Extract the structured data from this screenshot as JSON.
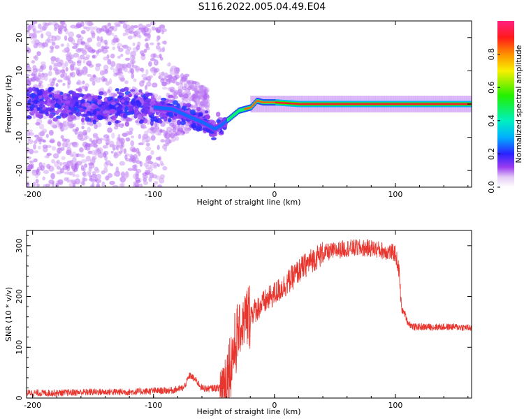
{
  "title": "S116.2022.005.04.49.E04",
  "chart_data": [
    {
      "type": "heatmap",
      "xlabel": "Height of straight line (km)",
      "ylabel": "Frequency (Hz)",
      "xlim": [
        -205,
        163
      ],
      "ylim": [
        -25,
        25
      ],
      "xticks": [
        -200,
        -100,
        0,
        100
      ],
      "yticks": [
        -20,
        -10,
        0,
        10,
        20
      ],
      "colorbar": {
        "label": "Normalized spectral amplitude",
        "range": [
          0,
          1
        ],
        "ticks": [
          "0.0",
          "0.2",
          "0.4",
          "0.6",
          "0.8"
        ]
      },
      "ridge_frequency_track": [
        {
          "x": -205,
          "y": 0.5
        },
        {
          "x": -180,
          "y": 0.0
        },
        {
          "x": -150,
          "y": -1.0
        },
        {
          "x": -120,
          "y": -0.5
        },
        {
          "x": -100,
          "y": -1.0
        },
        {
          "x": -85,
          "y": -1.5
        },
        {
          "x": -70,
          "y": -4.0
        },
        {
          "x": -60,
          "y": -5.5
        },
        {
          "x": -50,
          "y": -7.5
        },
        {
          "x": -45,
          "y": -6.5
        },
        {
          "x": -40,
          "y": -5.0
        },
        {
          "x": -35,
          "y": -3.5
        },
        {
          "x": -30,
          "y": -2.0
        },
        {
          "x": -25,
          "y": -1.5
        },
        {
          "x": -20,
          "y": -1.0
        },
        {
          "x": -15,
          "y": 1.0
        },
        {
          "x": -10,
          "y": 0.5
        },
        {
          "x": 0,
          "y": 0.5
        },
        {
          "x": 20,
          "y": 0.0
        },
        {
          "x": 60,
          "y": 0.0
        },
        {
          "x": 100,
          "y": 0.0
        },
        {
          "x": 163,
          "y": 0.0
        }
      ]
    },
    {
      "type": "line",
      "xlabel": "Height of straight line (km)",
      "ylabel": "SNR (10 * v/v)",
      "xlim": [
        -205,
        163
      ],
      "ylim": [
        0,
        330
      ],
      "xticks": [
        -200,
        -100,
        0,
        100
      ],
      "yticks": [
        0,
        100,
        200,
        300
      ],
      "color": "#e8352e",
      "series": [
        {
          "x": [
            -205,
            -180,
            -150,
            -120,
            -100,
            -85,
            -75,
            -70,
            -65,
            -60,
            -55,
            -50,
            -45,
            -40,
            -35,
            -30,
            -25,
            -20,
            -15,
            -10,
            -5,
            0,
            10,
            20,
            30,
            40,
            50,
            60,
            70,
            80,
            90,
            100,
            103,
            105,
            108,
            110,
            112,
            115,
            120,
            130,
            140,
            150,
            163
          ],
          "y": [
            10,
            10,
            12,
            12,
            14,
            15,
            20,
            45,
            35,
            20,
            18,
            20,
            20,
            35,
            80,
            130,
            150,
            165,
            175,
            185,
            195,
            205,
            225,
            250,
            270,
            285,
            290,
            295,
            295,
            295,
            290,
            285,
            250,
            175,
            165,
            150,
            145,
            140,
            140,
            140,
            140,
            140,
            138
          ]
        }
      ]
    }
  ]
}
